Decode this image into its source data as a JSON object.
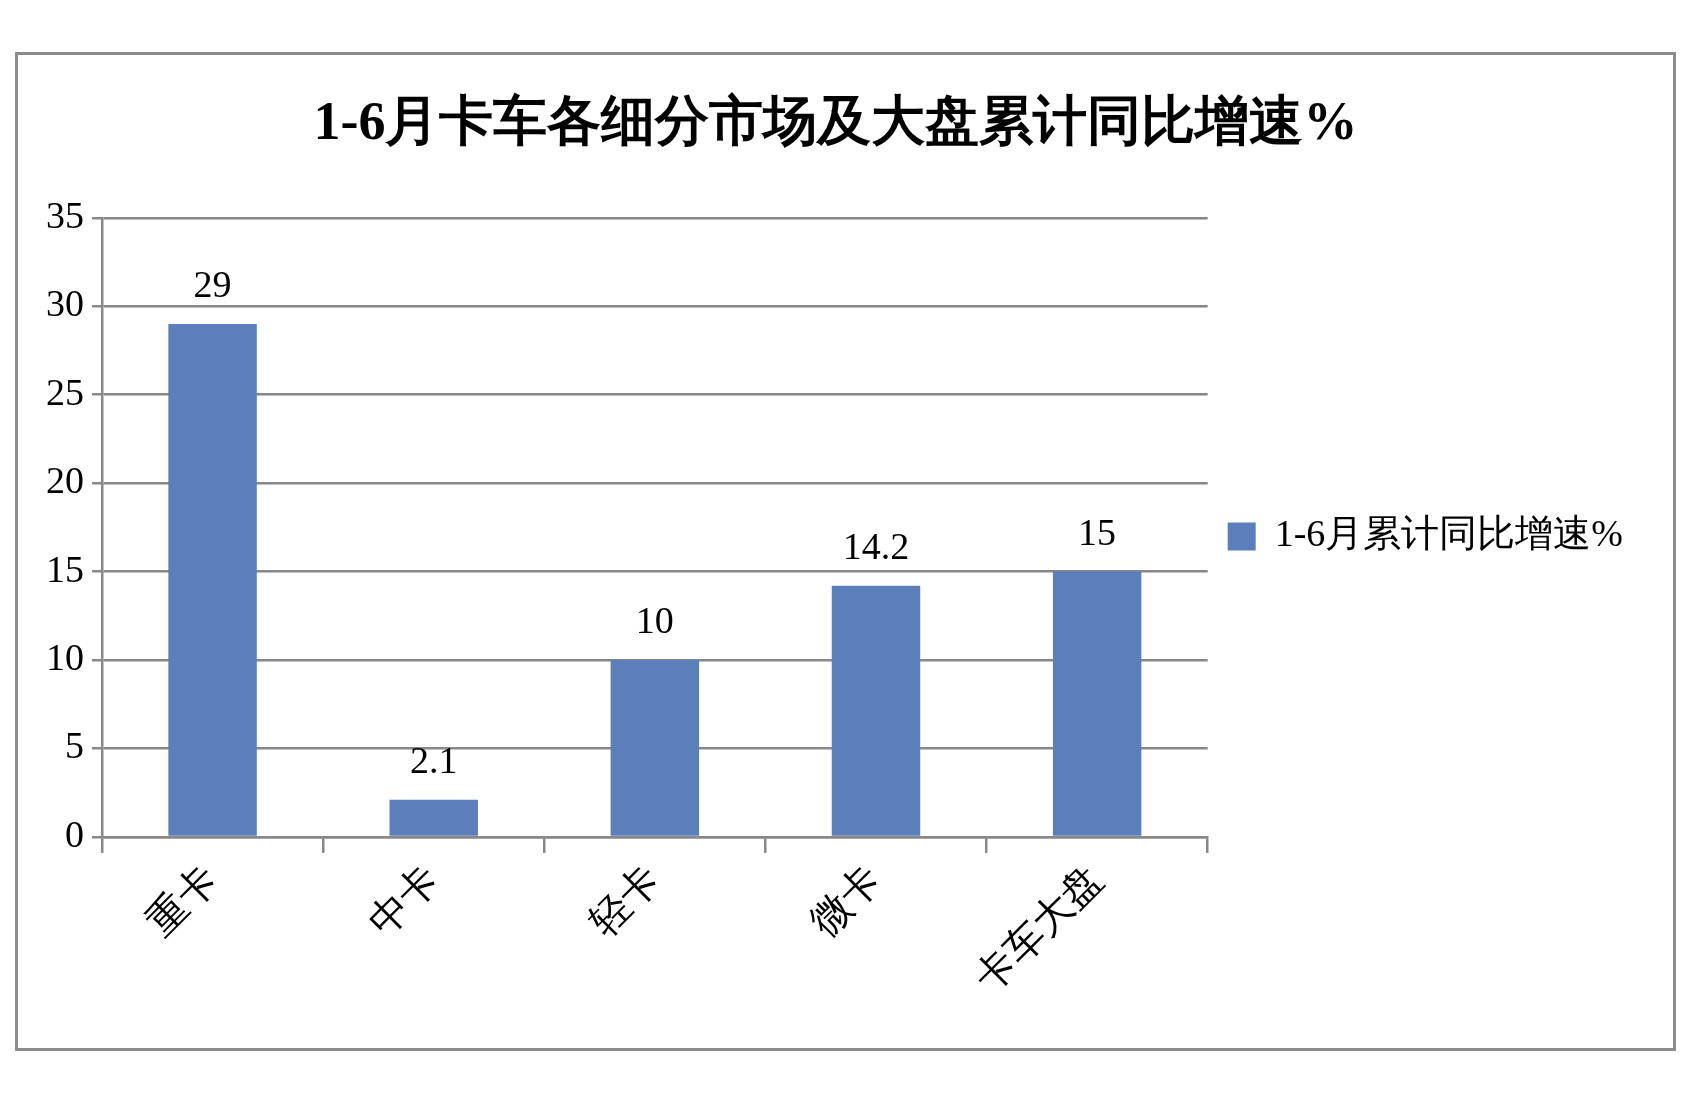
{
  "chart_data": {
    "type": "bar",
    "title": "1-6月卡车各细分市场及大盘累计同比增速%",
    "categories": [
      "重卡",
      "中卡",
      "轻卡",
      "微卡",
      "卡车大盘"
    ],
    "series": [
      {
        "name": "1-6月累计同比增速%",
        "color": "#5a7fbb",
        "values": [
          29,
          2.1,
          10,
          14.2,
          15
        ]
      }
    ],
    "ylim": [
      0,
      35
    ],
    "yticks": [
      0,
      5,
      10,
      15,
      20,
      25,
      30,
      35
    ],
    "grid": "y",
    "legend": "right",
    "data_labels": true
  }
}
